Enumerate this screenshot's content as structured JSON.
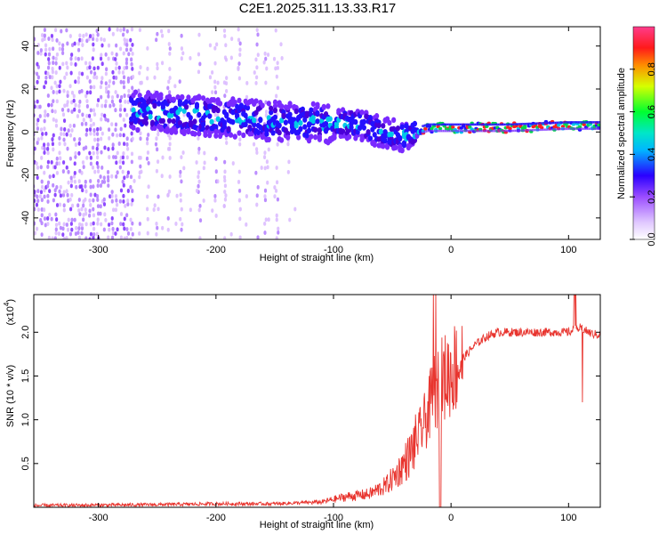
{
  "title": "C2E1.2025.311.13.33.R17",
  "chart_data": [
    {
      "type": "heatmap",
      "name": "spectrogram",
      "xlabel": "Height of straight line (km)",
      "ylabel": "Frequency (Hz)",
      "xlim": [
        -355,
        127
      ],
      "ylim": [
        -50,
        49
      ],
      "xticks": [
        -300,
        -200,
        -100,
        0,
        100
      ],
      "xtick_labels": [
        "-300",
        "-200",
        "-100",
        "0",
        "100"
      ],
      "yticks": [
        -40,
        -20,
        0,
        20,
        40
      ],
      "ytick_labels": [
        "-40",
        "-20",
        "0",
        "20",
        "40"
      ],
      "colorbar": {
        "label": "Normalized spectral amplitude",
        "range": [
          0,
          1
        ],
        "ticks": [
          0.0,
          0.2,
          0.4,
          0.6,
          0.8
        ],
        "tick_labels": [
          "0.0",
          "0.2",
          "0.4",
          "0.6",
          "0.8"
        ]
      },
      "ridge": [
        {
          "x": -270,
          "freq": 10
        },
        {
          "x": -200,
          "freq": 7
        },
        {
          "x": -150,
          "freq": 5
        },
        {
          "x": -100,
          "freq": 4
        },
        {
          "x": -80,
          "freq": 4
        },
        {
          "x": -60,
          "freq": 0
        },
        {
          "x": -40,
          "freq": -2
        },
        {
          "x": -20,
          "freq": 2
        },
        {
          "x": 0,
          "freq": 2
        },
        {
          "x": 50,
          "freq": 2
        },
        {
          "x": 100,
          "freq": 3
        },
        {
          "x": 125,
          "freq": 3
        }
      ]
    },
    {
      "type": "line",
      "name": "snr",
      "xlabel": "Height of straight line (km)",
      "ylabel": "SNR (10 * v/v)",
      "exponent_label": "(x10",
      "exponent": "4",
      "exponent_close": ")",
      "xlim": [
        -355,
        127
      ],
      "ylim": [
        0,
        2.43
      ],
      "xticks": [
        -300,
        -200,
        -100,
        0,
        100
      ],
      "xtick_labels": [
        "-300",
        "-200",
        "-100",
        "0",
        "100"
      ],
      "yticks": [
        0.5,
        1.0,
        1.5,
        2.0
      ],
      "ytick_labels": [
        "0.5",
        "1.0",
        "1.5",
        "2.0"
      ],
      "color": "#e8342e",
      "series": [
        {
          "name": "SNR",
          "x": [
            -355,
            -250,
            -200,
            -150,
            -110,
            -90,
            -70,
            -55,
            -45,
            -35,
            -28,
            -20,
            -15,
            -8,
            0,
            10,
            20,
            30,
            40,
            60,
            80,
            100,
            110,
            120,
            127
          ],
          "values": [
            0.02,
            0.03,
            0.04,
            0.04,
            0.06,
            0.12,
            0.15,
            0.25,
            0.4,
            0.6,
            0.8,
            1.05,
            1.3,
            1.45,
            1.55,
            1.7,
            1.85,
            1.95,
            2.0,
            2.0,
            2.0,
            2.0,
            2.05,
            1.98,
            1.97
          ]
        }
      ]
    }
  ]
}
